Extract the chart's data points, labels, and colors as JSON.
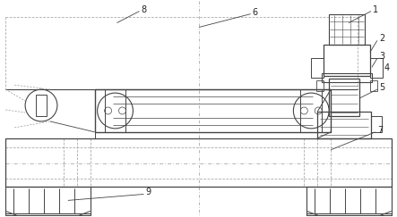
{
  "figsize": [
    4.43,
    2.43
  ],
  "dpi": 100,
  "bg_color": "#ffffff",
  "line_color": "#444444",
  "dash_color": "#999999",
  "label_color": "#222222",
  "xlim": [
    0,
    443
  ],
  "ylim": [
    0,
    243
  ]
}
